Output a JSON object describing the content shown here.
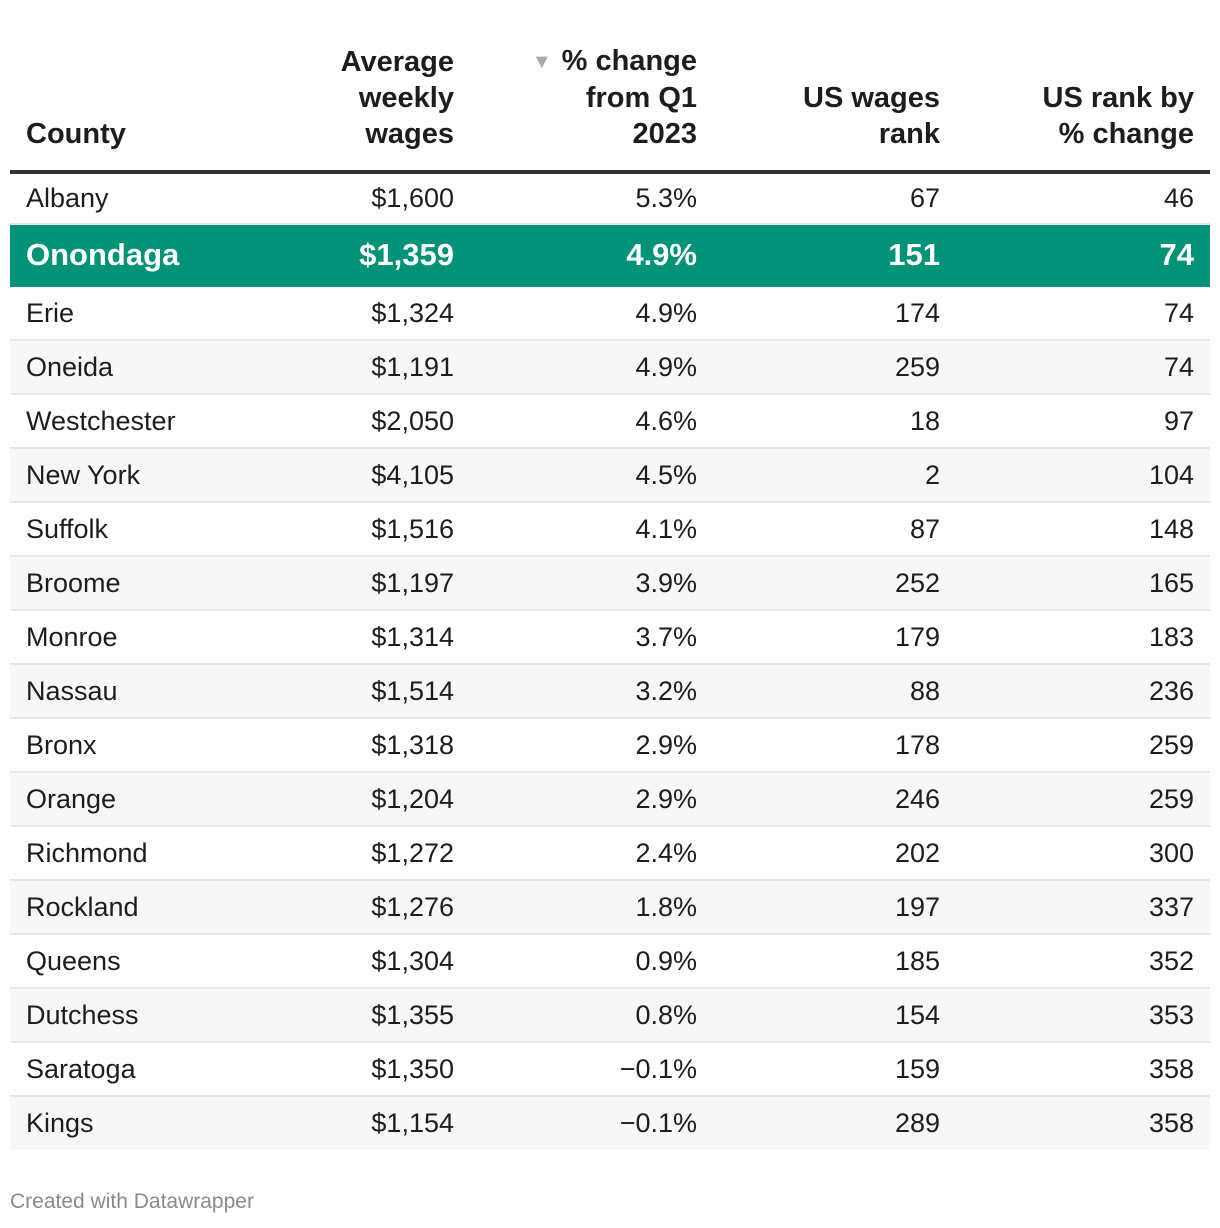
{
  "chart_data": {
    "type": "table",
    "columns": [
      {
        "key": "county",
        "label": "County"
      },
      {
        "key": "avg_weekly_wages",
        "label": "Average weekly wages"
      },
      {
        "key": "pct_change",
        "label": "% change from Q1 2023",
        "sorted": "descending"
      },
      {
        "key": "us_wages_rank",
        "label": "US wages rank"
      },
      {
        "key": "us_rank_pct_change",
        "label": "US rank by % change"
      }
    ],
    "header": {
      "county": "County",
      "wages_line1": "Average",
      "wages_line2": "weekly",
      "wages_line3": "wages",
      "change_line1": "% change",
      "change_line2": "from Q1",
      "change_line3": "2023",
      "rank_line1": "US wages",
      "rank_line2": "rank",
      "rankchg_line1": "US rank by",
      "rankchg_line2": "% change",
      "sort_icon": "sort-descending-icon",
      "sort_glyph": "▼"
    },
    "highlight_county": "Onondaga",
    "highlight_color": "#009378",
    "rows": [
      {
        "county": "Albany",
        "wages": "$1,600",
        "change": "5.3%",
        "rank": "67",
        "rank_change": "46"
      },
      {
        "county": "Onondaga",
        "wages": "$1,359",
        "change": "4.9%",
        "rank": "151",
        "rank_change": "74"
      },
      {
        "county": "Erie",
        "wages": "$1,324",
        "change": "4.9%",
        "rank": "174",
        "rank_change": "74"
      },
      {
        "county": "Oneida",
        "wages": "$1,191",
        "change": "4.9%",
        "rank": "259",
        "rank_change": "74"
      },
      {
        "county": "Westchester",
        "wages": "$2,050",
        "change": "4.6%",
        "rank": "18",
        "rank_change": "97"
      },
      {
        "county": "New York",
        "wages": "$4,105",
        "change": "4.5%",
        "rank": "2",
        "rank_change": "104"
      },
      {
        "county": "Suffolk",
        "wages": "$1,516",
        "change": "4.1%",
        "rank": "87",
        "rank_change": "148"
      },
      {
        "county": "Broome",
        "wages": "$1,197",
        "change": "3.9%",
        "rank": "252",
        "rank_change": "165"
      },
      {
        "county": "Monroe",
        "wages": "$1,314",
        "change": "3.7%",
        "rank": "179",
        "rank_change": "183"
      },
      {
        "county": "Nassau",
        "wages": "$1,514",
        "change": "3.2%",
        "rank": "88",
        "rank_change": "236"
      },
      {
        "county": "Bronx",
        "wages": "$1,318",
        "change": "2.9%",
        "rank": "178",
        "rank_change": "259"
      },
      {
        "county": "Orange",
        "wages": "$1,204",
        "change": "2.9%",
        "rank": "246",
        "rank_change": "259"
      },
      {
        "county": "Richmond",
        "wages": "$1,272",
        "change": "2.4%",
        "rank": "202",
        "rank_change": "300"
      },
      {
        "county": "Rockland",
        "wages": "$1,276",
        "change": "1.8%",
        "rank": "197",
        "rank_change": "337"
      },
      {
        "county": "Queens",
        "wages": "$1,304",
        "change": "0.9%",
        "rank": "185",
        "rank_change": "352"
      },
      {
        "county": "Dutchess",
        "wages": "$1,355",
        "change": "0.8%",
        "rank": "154",
        "rank_change": "353"
      },
      {
        "county": "Saratoga",
        "wages": "$1,350",
        "change": "−0.1%",
        "rank": "159",
        "rank_change": "358"
      },
      {
        "county": "Kings",
        "wages": "$1,154",
        "change": "−0.1%",
        "rank": "289",
        "rank_change": "358"
      }
    ]
  },
  "footer": {
    "credit": "Created with Datawrapper"
  }
}
